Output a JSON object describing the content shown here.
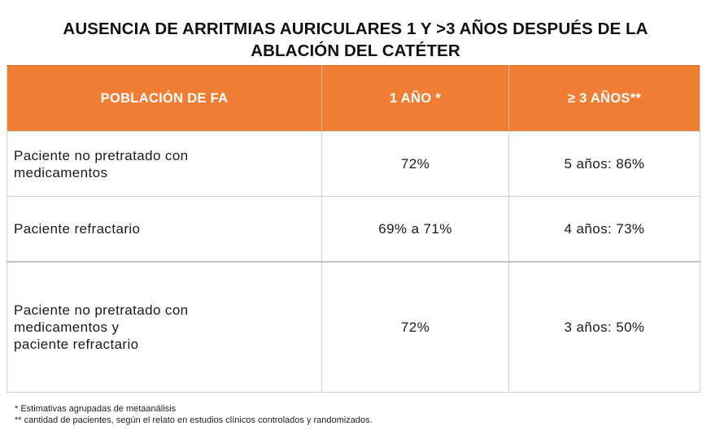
{
  "title": {
    "line1": "AUSENCIA DE ARRITMIAS AURICULARES 1 Y >3 AÑOS DESPUÉS DE LA",
    "line2": "ABLACIÓN DEL CATÉTER"
  },
  "table": {
    "headers": [
      "POBLACIÓN DE FA",
      "1 AÑO *",
      "≥ 3 AÑOS**"
    ],
    "rows": [
      {
        "population_lines": [
          "Paciente no pretratado con",
          "medicamentos"
        ],
        "one_year": "72%",
        "three_years": "5 años: 86%"
      },
      {
        "population_lines": [
          "Paciente refractario"
        ],
        "one_year": "69% a 71%",
        "three_years": "4 años: 73%"
      },
      {
        "population_lines": [
          "Paciente no pretratado con",
          "medicamentos y",
          "paciente refractario"
        ],
        "one_year": "72%",
        "three_years": "3 años: 50%"
      }
    ]
  },
  "footnotes": [
    "* Estimativas agrupadas de metaanálisis",
    "** cantidad de pacientes, según el relato en estudios clínicos controlados y randomizados."
  ],
  "colors": {
    "header_background": "#ef7d34",
    "header_text": "#ffffff",
    "grid": "#cfcfcf"
  }
}
